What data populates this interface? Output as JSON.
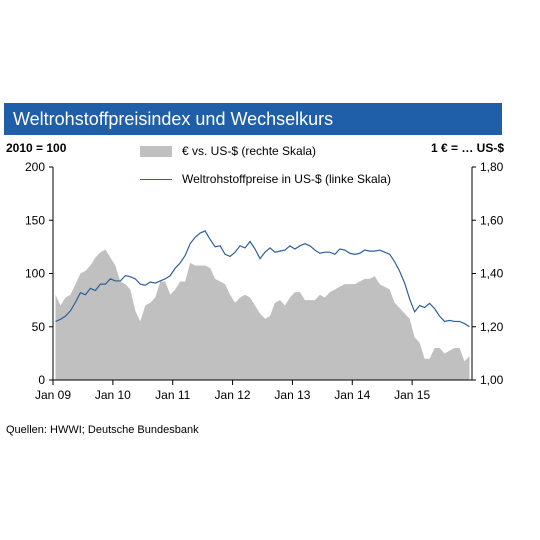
{
  "title": "Weltrohstoffpreisindex und Wechselkurs",
  "left_unit": "2010 = 100",
  "right_unit": "1 € = … US-$",
  "source": "Quellen: HWWI; Deutsche Bundesbank",
  "colors": {
    "title_bg": "#1f5ea8",
    "area": "#c0c0c0",
    "line": "#2f5f9a"
  },
  "chart_data": {
    "type": "area",
    "x_start": "2009-01",
    "x_end": "2015-12",
    "x_ticks": [
      "Jan 09",
      "Jan 10",
      "Jan 11",
      "Jan 12",
      "Jan 13",
      "Jan 14",
      "Jan 15"
    ],
    "y_left_ticks": [
      "200",
      "150",
      "100",
      "50",
      "0"
    ],
    "y_right_ticks": [
      "1,80",
      "1,60",
      "1,40",
      "1,20",
      "1,00"
    ],
    "y_left_range": [
      0,
      200
    ],
    "y_right_range": [
      1.0,
      1.8
    ],
    "grid": false,
    "legend_placement": "top-center",
    "series": [
      {
        "name": "€ vs. US-$ (rechte Skala)",
        "axis": "right",
        "type": "area",
        "values": [
          1.32,
          1.28,
          1.31,
          1.32,
          1.36,
          1.4,
          1.41,
          1.43,
          1.46,
          1.48,
          1.49,
          1.46,
          1.43,
          1.37,
          1.36,
          1.34,
          1.26,
          1.22,
          1.28,
          1.29,
          1.31,
          1.37,
          1.37,
          1.32,
          1.34,
          1.37,
          1.37,
          1.44,
          1.43,
          1.43,
          1.43,
          1.42,
          1.38,
          1.37,
          1.36,
          1.32,
          1.29,
          1.31,
          1.32,
          1.31,
          1.28,
          1.25,
          1.23,
          1.24,
          1.29,
          1.3,
          1.28,
          1.31,
          1.33,
          1.33,
          1.3,
          1.3,
          1.3,
          1.32,
          1.31,
          1.33,
          1.34,
          1.35,
          1.36,
          1.36,
          1.36,
          1.37,
          1.38,
          1.38,
          1.39,
          1.36,
          1.35,
          1.34,
          1.29,
          1.27,
          1.25,
          1.23,
          1.16,
          1.14,
          1.08,
          1.08,
          1.12,
          1.12,
          1.1,
          1.11,
          1.12,
          1.12,
          1.07,
          1.09
        ]
      },
      {
        "name": "Weltrohstoffpreise in US-$ (linke Skala)",
        "axis": "left",
        "type": "line",
        "values": [
          55,
          57,
          60,
          65,
          73,
          82,
          80,
          86,
          84,
          90,
          90,
          95,
          93,
          93,
          98,
          97,
          95,
          90,
          89,
          92,
          91,
          93,
          95,
          98,
          105,
          110,
          117,
          128,
          134,
          138,
          140,
          132,
          125,
          126,
          118,
          116,
          120,
          126,
          124,
          130,
          123,
          114,
          120,
          124,
          120,
          121,
          122,
          126,
          123,
          126,
          128,
          126,
          122,
          119,
          120,
          120,
          118,
          123,
          122,
          119,
          118,
          119,
          122,
          121,
          121,
          122,
          120,
          118,
          111,
          102,
          91,
          76,
          64,
          70,
          68,
          72,
          67,
          60,
          55,
          56,
          55,
          55,
          53,
          50
        ]
      }
    ]
  }
}
